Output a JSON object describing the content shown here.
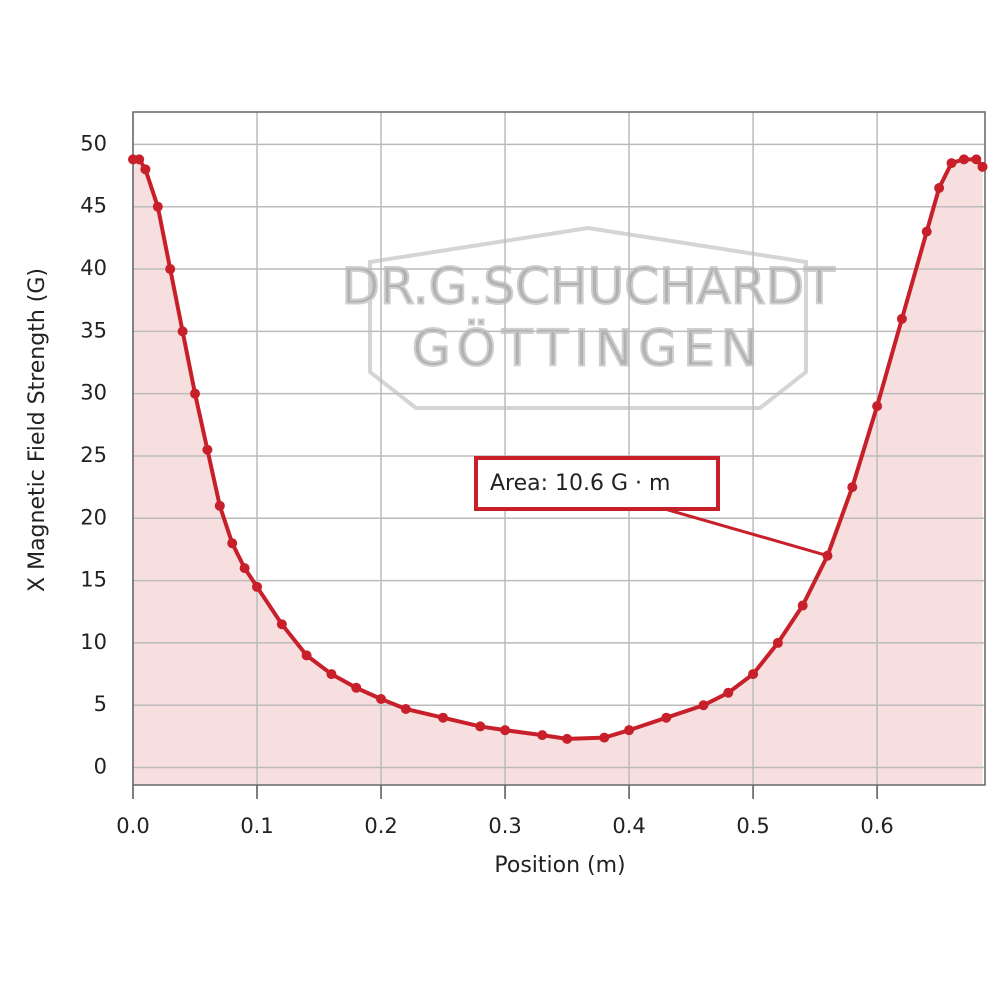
{
  "chart_data": {
    "type": "line",
    "x_label": "Position (m)",
    "y_label": "X Magnetic Field Strength (G)",
    "annotation": "Area: 10.6 G · m",
    "watermark": [
      "DR.G.SCHUCHARDT",
      "GÖTTINGEN"
    ],
    "x": [
      0.0,
      0.005,
      0.01,
      0.02,
      0.03,
      0.04,
      0.05,
      0.06,
      0.07,
      0.08,
      0.09,
      0.1,
      0.12,
      0.14,
      0.16,
      0.18,
      0.2,
      0.22,
      0.25,
      0.28,
      0.3,
      0.33,
      0.35,
      0.38,
      0.4,
      0.43,
      0.46,
      0.48,
      0.5,
      0.52,
      0.54,
      0.56,
      0.58,
      0.6,
      0.62,
      0.64,
      0.65,
      0.66,
      0.67,
      0.68,
      0.685
    ],
    "series": [
      {
        "color": "#c8202a",
        "fill": "#f7dfdf",
        "values": [
          48.8,
          48.8,
          48,
          45,
          40,
          35,
          30,
          25.5,
          21,
          18,
          16,
          14.5,
          11.5,
          9,
          7.5,
          6.4,
          5.5,
          4.7,
          4,
          3.3,
          3,
          2.6,
          2.3,
          2.4,
          3,
          4,
          5,
          6,
          7.5,
          10,
          13,
          17,
          22.5,
          29,
          36,
          43,
          46.5,
          48.5,
          48.8,
          48.8,
          48.2
        ]
      }
    ],
    "annotation_x": 0.56,
    "annotation_y": 17,
    "xlim": [
      0,
      0.687
    ],
    "ylim": [
      -1.4,
      52.6
    ],
    "xticks": [
      {
        "value": 0,
        "label": "0.0"
      },
      0.1,
      0.2,
      0.3,
      0.4,
      0.5,
      0.6
    ],
    "yticks": [
      0,
      5,
      10,
      15,
      20,
      25,
      30,
      35,
      40,
      45,
      50
    ],
    "grid": true
  }
}
